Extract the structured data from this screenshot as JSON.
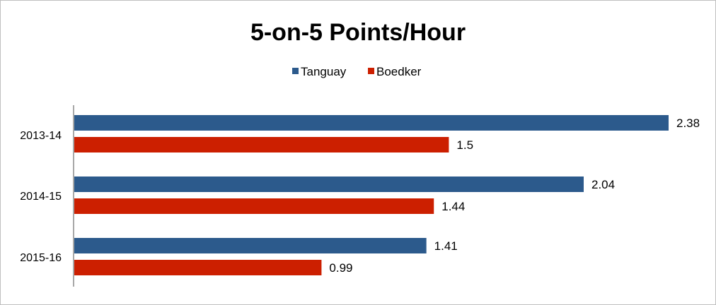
{
  "chart_data": {
    "type": "bar",
    "orientation": "horizontal",
    "title": "5-on-5 Points/Hour",
    "xlabel": "",
    "ylabel": "",
    "categories": [
      "2013-14",
      "2014-15",
      "2015-16"
    ],
    "series": [
      {
        "name": "Tanguay",
        "color": "#2c5a8c",
        "values": [
          2.38,
          2.04,
          1.41
        ],
        "labels": [
          "2.38",
          "2.04",
          "1.41"
        ]
      },
      {
        "name": "Boedker",
        "color": "#cc1f00",
        "values": [
          1.5,
          1.44,
          0.99
        ],
        "labels": [
          "1.5",
          "1.44",
          "0.99"
        ]
      }
    ],
    "xlim": [
      0,
      2.5
    ],
    "grid": false,
    "legend_position": "top"
  }
}
